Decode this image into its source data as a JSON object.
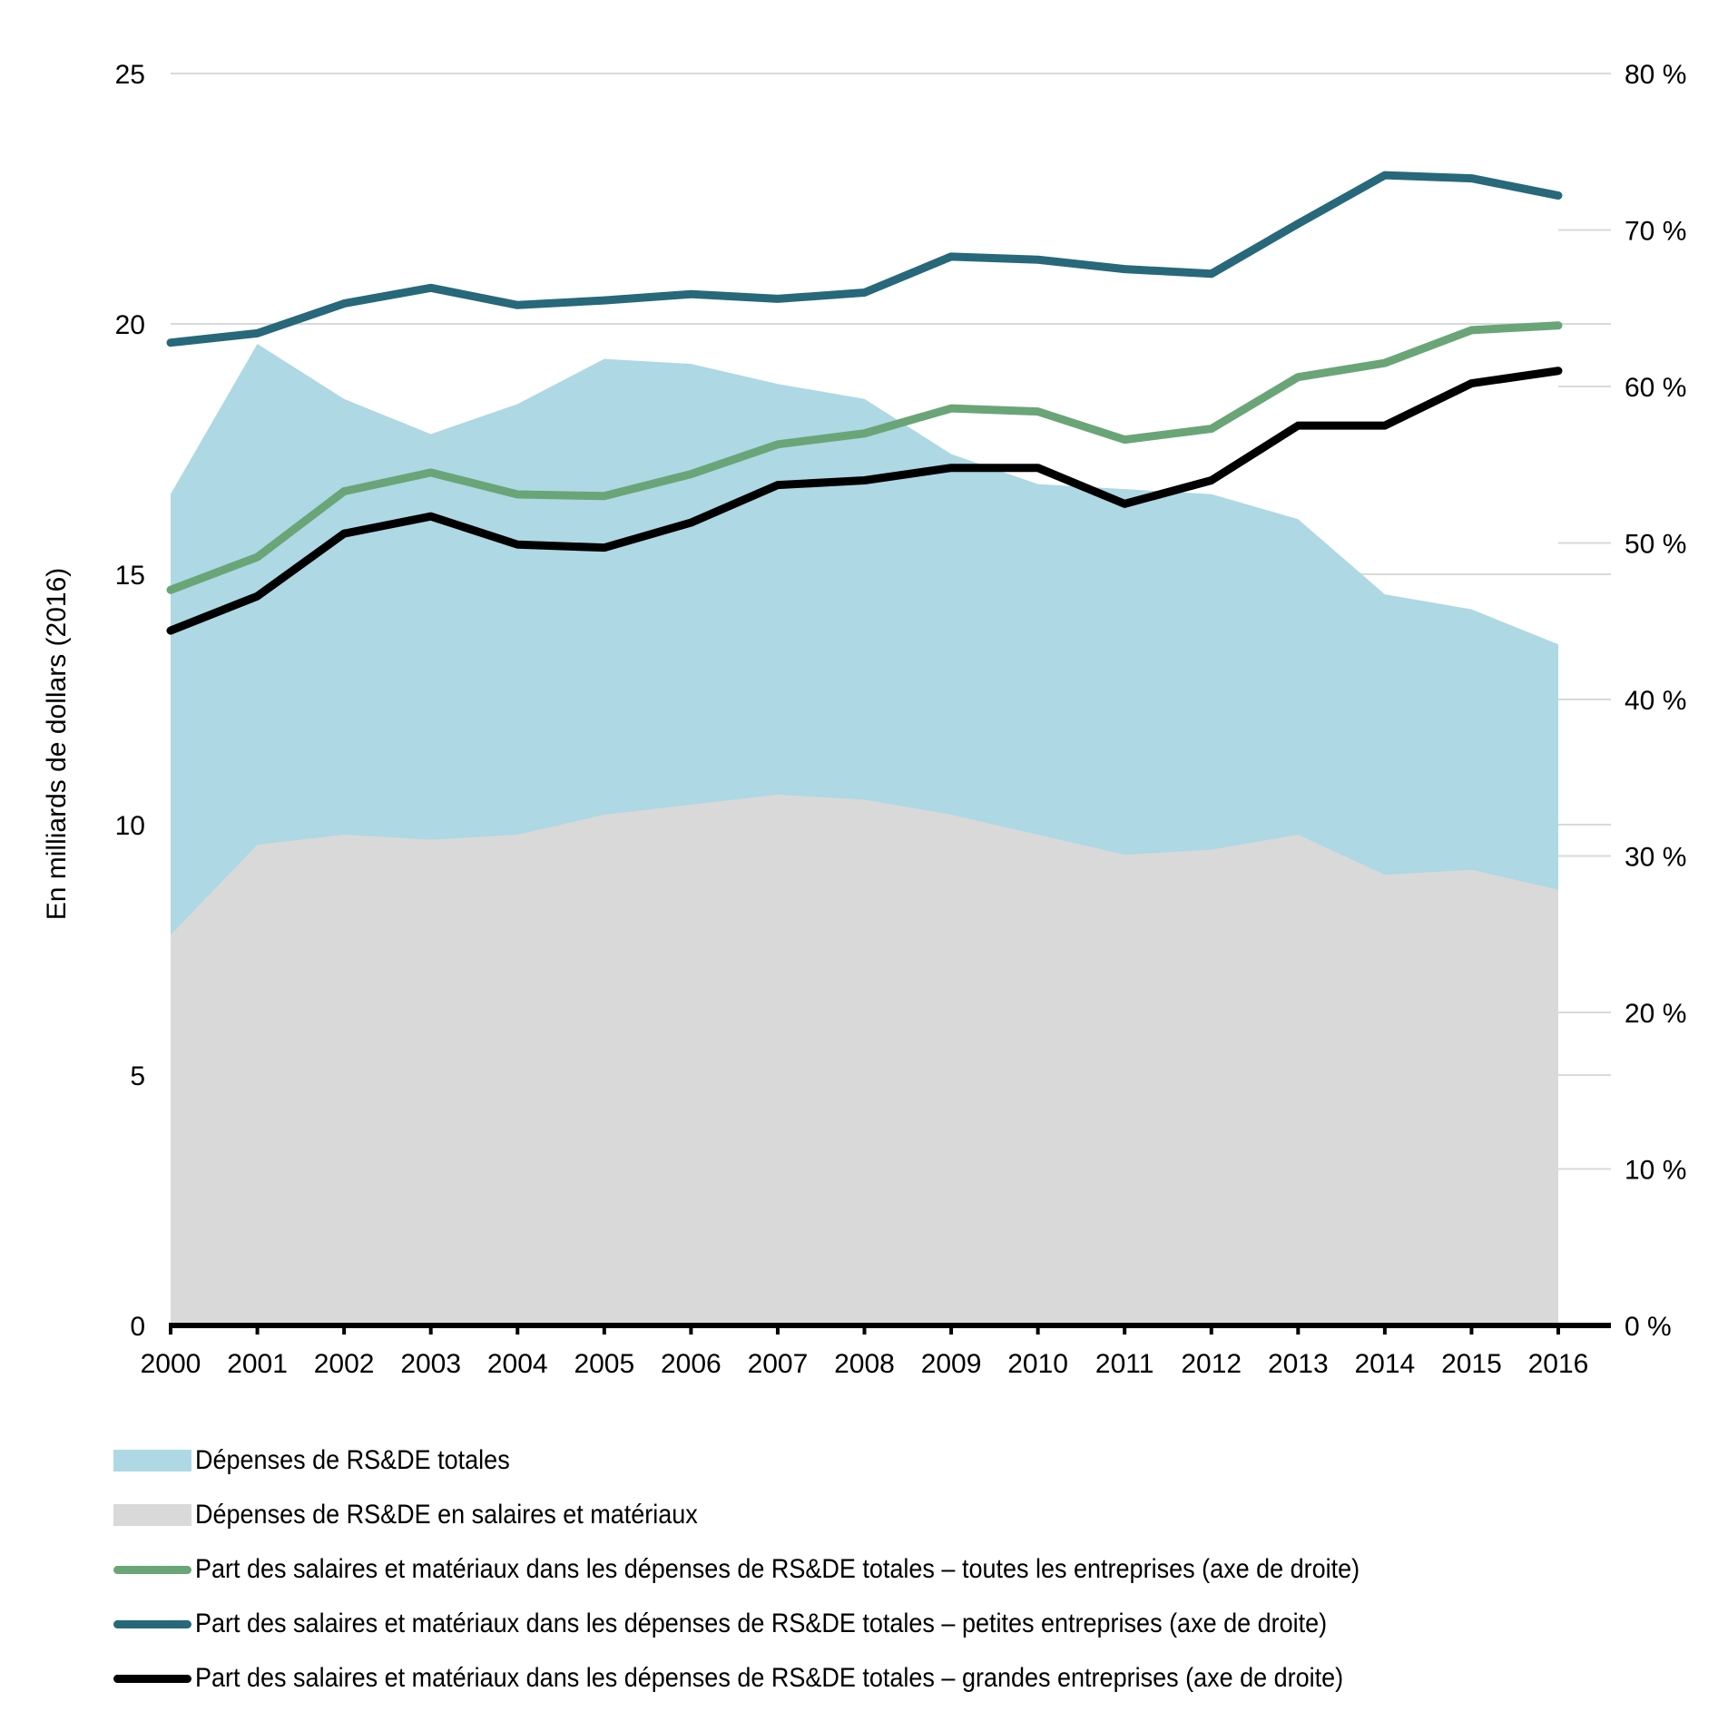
{
  "chart_data": {
    "type": "area",
    "title": "",
    "ylabel": "En milliards de dollars (2016)",
    "y2label": "",
    "xlabel": "",
    "ylim": [
      0,
      25
    ],
    "y2lim": [
      0,
      80
    ],
    "yticks": [
      "0",
      "5",
      "10",
      "15",
      "20",
      "25"
    ],
    "y2ticks": [
      "0 %",
      "10 %",
      "20 %",
      "30 %",
      "40 %",
      "50 %",
      "60 %",
      "70 %",
      "80 %"
    ],
    "grid": true,
    "legend_position": "bottom",
    "categories": [
      "2000",
      "2001",
      "2002",
      "2003",
      "2004",
      "2005",
      "2006",
      "2007",
      "2008",
      "2009",
      "2010",
      "2011",
      "2012",
      "2013",
      "2014",
      "2015",
      "2016"
    ],
    "series": [
      {
        "name": "Dépenses de RS&DE totales",
        "kind": "area",
        "axis": "left",
        "color": "#add8e4",
        "values": [
          16.6,
          19.6,
          18.5,
          17.8,
          18.4,
          19.3,
          19.2,
          18.8,
          18.5,
          17.4,
          16.8,
          16.7,
          16.6,
          16.1,
          14.6,
          14.3,
          13.6
        ]
      },
      {
        "name": "Dépenses de RS&DE en salaires et matériaux",
        "kind": "area",
        "axis": "left",
        "color": "#d9d9d9",
        "values": [
          7.8,
          9.6,
          9.8,
          9.7,
          9.8,
          10.2,
          10.4,
          10.6,
          10.5,
          10.2,
          9.8,
          9.4,
          9.5,
          9.8,
          9.0,
          9.1,
          8.7
        ]
      },
      {
        "name": "Part des salaires et matériaux dans les dépenses de RS&DE totales – toutes les entreprises (axe de droite)",
        "kind": "line",
        "axis": "right",
        "color": "#6aa577",
        "values": [
          47.0,
          49.1,
          53.3,
          54.5,
          53.1,
          53.0,
          54.4,
          56.3,
          57.0,
          58.6,
          58.4,
          56.6,
          57.3,
          60.6,
          61.5,
          63.6,
          63.9
        ]
      },
      {
        "name": "Part des salaires et matériaux dans les dépenses de RS&DE totales – petites entreprises (axe de droite)",
        "kind": "line",
        "axis": "right",
        "color": "#27687a",
        "values": [
          62.8,
          63.4,
          65.3,
          66.3,
          65.2,
          65.5,
          65.9,
          65.6,
          66.0,
          68.3,
          68.1,
          67.5,
          67.2,
          70.4,
          73.5,
          73.3,
          72.2
        ]
      },
      {
        "name": "Part des salaires et matériaux dans les dépenses de RS&DE totales – grandes entreprises (axe de droite)",
        "kind": "line",
        "axis": "right",
        "color": "#000000",
        "values": [
          44.4,
          46.6,
          50.6,
          51.7,
          49.9,
          49.7,
          51.3,
          53.7,
          54.0,
          54.8,
          54.8,
          52.5,
          54.0,
          57.5,
          57.5,
          60.2,
          61.0
        ]
      }
    ]
  },
  "legend": [
    {
      "label": "Dépenses de RS&DE totales",
      "type": "area",
      "color": "#add8e4"
    },
    {
      "label": "Dépenses de RS&DE en salaires et matériaux",
      "type": "area",
      "color": "#d9d9d9"
    },
    {
      "label": "Part des salaires et matériaux dans les dépenses de RS&DE totales – toutes les entreprises (axe de droite)",
      "type": "line",
      "color": "#6aa577"
    },
    {
      "label": "Part des salaires et matériaux dans les dépenses de RS&DE totales – petites entreprises (axe de droite)",
      "type": "line",
      "color": "#27687a"
    },
    {
      "label": "Part des salaires et matériaux dans les dépenses de RS&DE totales – grandes entreprises (axe de droite)",
      "type": "line",
      "color": "#000000"
    }
  ]
}
